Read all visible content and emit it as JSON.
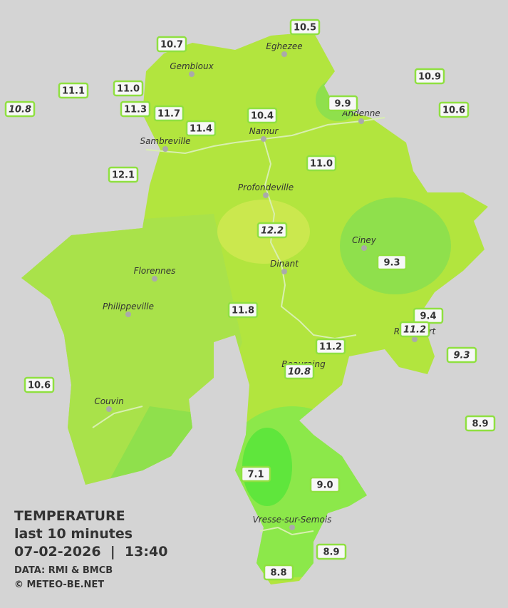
{
  "legend_block": {
    "heading": "TEMPERATURE",
    "subtitle": "last 10 minutes",
    "datetime": "07-02-2026  |  13:40",
    "source": "DATA: RMI & BMCB",
    "credit": "© METEO-BE.NET"
  },
  "cities": [
    "Eghezee",
    "Gembloux",
    "Andenne",
    "Namur",
    "Sambreville",
    "Profondeville",
    "Ciney",
    "Florennes",
    "Dinant",
    "Philippeville",
    "Rochefort",
    "Beauraing",
    "Couvin",
    "Vresse-sur-Semois"
  ],
  "stations": [
    "10.7",
    "10.5",
    "10.9",
    "11.1",
    "11.0",
    "10.8",
    "11.3",
    "11.7",
    "9.9",
    "10.6",
    "10.4",
    "11.4",
    "12.1",
    "11.0",
    "12.2",
    "9.3",
    "11.8",
    "9.4",
    "11.2",
    "11.2",
    "9.3",
    "10.8",
    "10.6",
    "8.9",
    "7.1",
    "9.0",
    "8.9",
    "8.8"
  ]
}
